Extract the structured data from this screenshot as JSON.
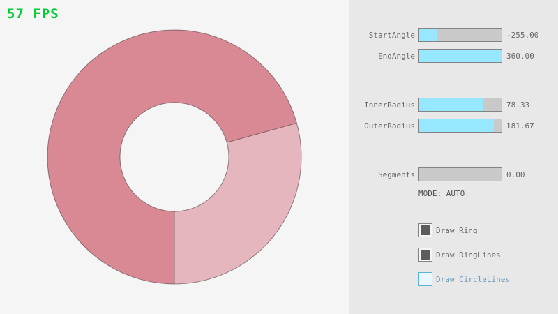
{
  "fps_label": "57 FPS",
  "panel": {
    "sliders": [
      {
        "label": "StartAngle",
        "value": "-255.00",
        "percent": 22
      },
      {
        "label": "EndAngle",
        "value": "360.00",
        "percent": 100
      },
      {
        "label": "InnerRadius",
        "value": "78.33",
        "percent": 78
      },
      {
        "label": "OuterRadius",
        "value": "181.67",
        "percent": 91
      },
      {
        "label": "Segments",
        "value": "0.00",
        "percent": 0
      }
    ],
    "mode_label": "MODE: AUTO",
    "checkboxes": [
      {
        "label": "Draw Ring",
        "state": "checked"
      },
      {
        "label": "Draw RingLines",
        "state": "checked"
      },
      {
        "label": "Draw CircleLines",
        "state": "focused"
      }
    ]
  },
  "ring": {
    "start_angle": -255.0,
    "end_angle": 360.0,
    "inner_radius": 78.33,
    "outer_radius": 181.67,
    "segments": 0,
    "mode": "AUTO"
  },
  "colors": {
    "fps_text": "#00cc33",
    "canvas_bg": "#f5f5f5",
    "panel_bg": "#e8e8e8",
    "ring_overlap": "#d98994",
    "ring_single": "#e5b6bd",
    "ring_outline": "rgba(0,0,0,0.4)",
    "slider_fill": "#97e8ff",
    "slider_track": "#c9c9c9",
    "control_border": "#838383",
    "label_text": "#686868",
    "mode_text": "#505050",
    "check_fill": "#5c5c5c",
    "focused_border": "#5bb2d9",
    "focused_text": "#6c9bbc"
  }
}
